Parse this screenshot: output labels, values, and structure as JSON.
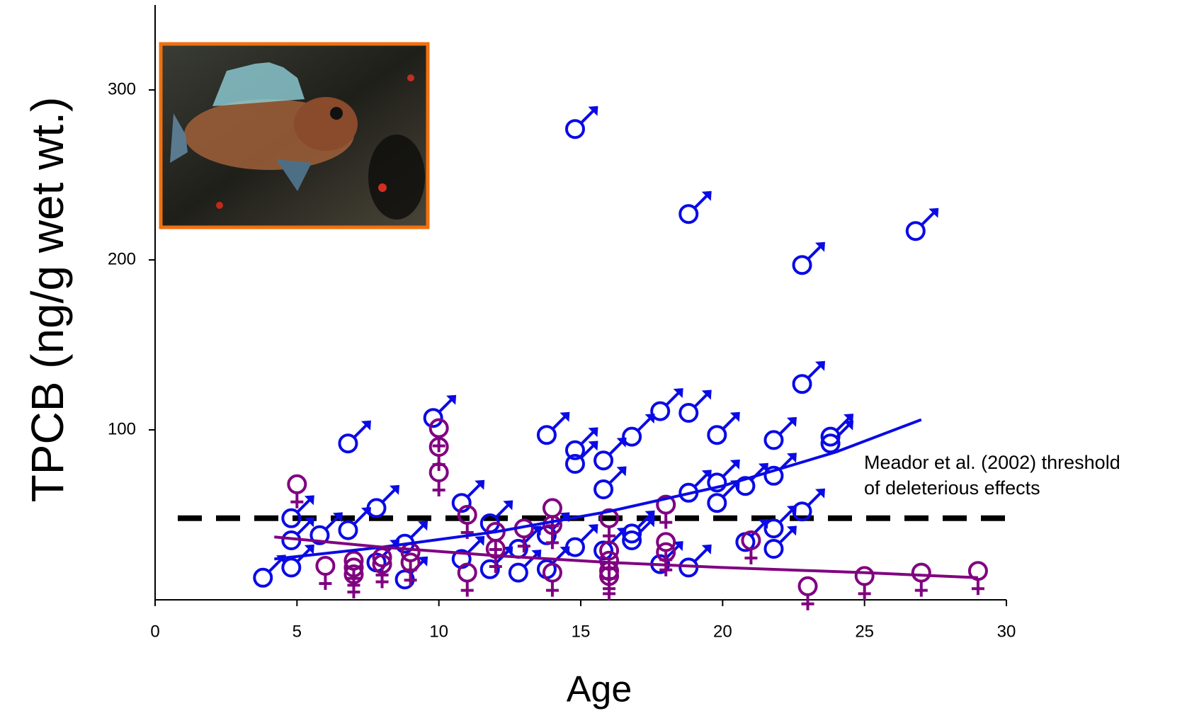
{
  "chart_data": {
    "type": "scatter",
    "y_label": "TPCB (ng/g wet wt.)",
    "x_label": "Age",
    "xlim": [
      0,
      30
    ],
    "xticks": [
      0,
      5,
      10,
      15,
      20,
      25,
      30
    ],
    "ylim": [
      0,
      350
    ],
    "yticks": [
      100,
      200,
      300
    ],
    "threshold": 48,
    "annotation": [
      "Meador et al. (2002) threshold",
      "of deleterious effects"
    ],
    "series": [
      {
        "marker": "male",
        "color": "#0a0ae6",
        "x": [
          3.8,
          4.8,
          4.8,
          4.8,
          5.8,
          6.8,
          6.8,
          7.8,
          7.8,
          8.8,
          8.8,
          9.8,
          10.8,
          10.8,
          11.8,
          11.8,
          12.8,
          12.8,
          13.8,
          13.8,
          13.8,
          14.8,
          14.8,
          14.8,
          14.8,
          15.8,
          15.8,
          15.8,
          16.8,
          16.8,
          16.8,
          17.8,
          17.8,
          18.8,
          18.8,
          18.8,
          18.8,
          19.8,
          19.8,
          19.8,
          20.8,
          20.8,
          21.8,
          21.8,
          21.8,
          21.8,
          22.8,
          22.8,
          22.8,
          23.8,
          23.8,
          26.8
        ],
        "values": [
          13,
          48,
          35,
          19,
          38,
          92,
          41,
          54,
          22,
          33,
          12,
          107,
          57,
          24,
          45,
          18,
          16,
          30,
          97,
          38,
          18,
          277,
          88,
          80,
          31,
          82,
          65,
          29,
          96,
          39,
          35,
          111,
          21,
          227,
          110,
          63,
          19,
          97,
          69,
          57,
          67,
          34,
          94,
          73,
          42,
          30,
          197,
          127,
          52,
          96,
          92,
          217
        ]
      },
      {
        "marker": "female",
        "color": "#800080",
        "x": [
          5,
          6,
          7,
          7,
          7,
          8,
          8,
          9,
          9,
          10,
          10,
          10,
          11,
          11,
          12,
          12,
          13,
          14,
          14,
          14,
          16,
          16,
          16,
          16,
          16,
          18,
          18,
          18,
          21,
          23,
          25,
          27,
          29
        ],
        "values": [
          68,
          20,
          23,
          19,
          15,
          25,
          21,
          28,
          22,
          101,
          90,
          75,
          50,
          16,
          40,
          30,
          42,
          54,
          44,
          16,
          48,
          29,
          23,
          17,
          14,
          56,
          34,
          28,
          35,
          8,
          14,
          16,
          17
        ]
      },
      {
        "marker": "line",
        "color": "#0a0ae6",
        "x": [
          4.2,
          8,
          12,
          16,
          20,
          24,
          27
        ],
        "values": [
          24,
          31,
          40,
          52,
          67,
          87,
          106
        ]
      },
      {
        "marker": "line",
        "color": "#800080",
        "x": [
          4.2,
          8,
          12,
          16,
          20,
          25,
          29
        ],
        "values": [
          37,
          31,
          26,
          22,
          19,
          16,
          13
        ]
      }
    ]
  }
}
